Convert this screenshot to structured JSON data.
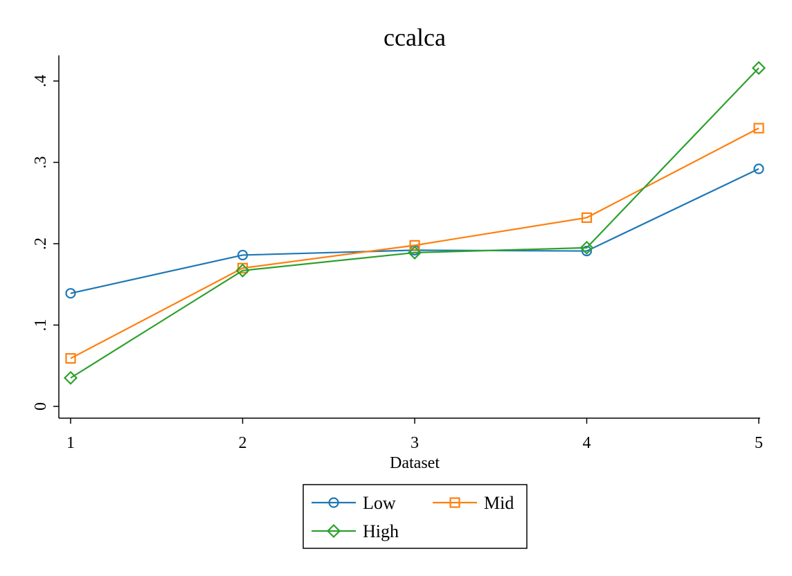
{
  "chart_data": {
    "type": "line",
    "title": "ccalca",
    "xlabel": "Dataset",
    "ylabel": "",
    "x": [
      1,
      2,
      3,
      4,
      5
    ],
    "xticks": [
      "1",
      "2",
      "3",
      "4",
      "5"
    ],
    "xlim": [
      1,
      5
    ],
    "yticks": [
      0,
      0.1,
      0.2,
      0.3,
      0.4
    ],
    "ytick_labels": [
      "0",
      ".1",
      ".2",
      ".3",
      ".4"
    ],
    "ylim": [
      0,
      0.4
    ],
    "grid": false,
    "legend_position": "bottom",
    "series": [
      {
        "name": "Low",
        "color": "#1f77b4",
        "marker": "circle",
        "values": [
          0.139,
          0.186,
          0.192,
          0.191,
          0.292
        ]
      },
      {
        "name": "Mid",
        "color": "#ff7f0e",
        "marker": "square",
        "values": [
          0.059,
          0.17,
          0.198,
          0.232,
          0.342
        ]
      },
      {
        "name": "High",
        "color": "#2ca02c",
        "marker": "diamond",
        "values": [
          0.035,
          0.167,
          0.189,
          0.195,
          0.416
        ]
      }
    ]
  }
}
